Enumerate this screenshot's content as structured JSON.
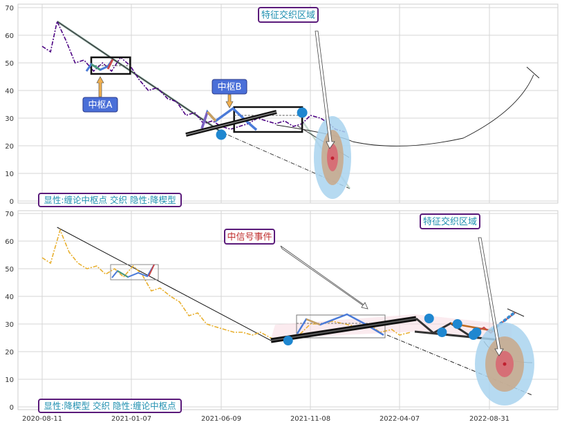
{
  "x_ticks": [
    "2020-08-11",
    "2021-01-07",
    "2021-06-09",
    "2021-11-08",
    "2022-04-07",
    "2022-08-31"
  ],
  "y_ticks": [
    "0",
    "10",
    "20",
    "30",
    "40",
    "50",
    "60",
    "70"
  ],
  "colors": {
    "top_price": "#4b0082",
    "bottom_price": "#e8b030",
    "hub_label_fill": "#4a6fd8",
    "highlight_blue": "#1f87d0",
    "zone_red": "#d24a5a",
    "legend_text": "#1f8fb0",
    "legend_border": "#5a1a7a",
    "signal_text": "#c03030"
  },
  "top_panel": {
    "annotation_zone": "特征交织区域",
    "hub_a": "中枢A",
    "hub_b": "中枢B",
    "legend": "显性:缠论中枢点 交织 隐性:降楔型"
  },
  "bottom_panel": {
    "annotation_zone": "特征交织区域",
    "signal": "中信号事件",
    "legend": "显性:降楔型 交织 隐性:缠论中枢点"
  },
  "chart_data": [
    {
      "type": "line",
      "panel": "top",
      "xlabels": [
        "2020-08-11",
        "2021-01-07",
        "2021-06-09",
        "2021-11-08",
        "2022-04-07",
        "2022-08-31"
      ],
      "ylim": [
        0,
        70
      ],
      "series": [
        {
          "values": [
            [
              "2020-08-11",
              56
            ],
            [
              "2020-08-25",
              54
            ],
            [
              "2020-09-05",
              65
            ],
            [
              "2020-09-20",
              58
            ],
            [
              "2020-10-05",
              50
            ],
            [
              "2020-10-20",
              51
            ],
            [
              "2020-11-05",
              47
            ],
            [
              "2020-11-20",
              50
            ],
            [
              "2020-12-05",
              47
            ],
            [
              "2020-12-20",
              52
            ],
            [
              "2021-01-05",
              49
            ],
            [
              "2021-01-20",
              44
            ],
            [
              "2021-02-05",
              40
            ],
            [
              "2021-02-20",
              41
            ],
            [
              "2021-03-10",
              37
            ],
            [
              "2021-03-25",
              36
            ],
            [
              "2021-04-10",
              31
            ],
            [
              "2021-04-25",
              32
            ],
            [
              "2021-05-10",
              28
            ],
            [
              "2021-05-25",
              29
            ],
            [
              "2021-06-09",
              27
            ],
            [
              "2021-06-25",
              26
            ],
            [
              "2021-07-10",
              27
            ],
            [
              "2021-07-25",
              28
            ],
            [
              "2021-08-10",
              30
            ],
            [
              "2021-08-25",
              29
            ],
            [
              "2021-09-10",
              28
            ],
            [
              "2021-09-25",
              29
            ],
            [
              "2021-10-10",
              27
            ],
            [
              "2021-10-25",
              28
            ],
            [
              "2021-11-08",
              31
            ],
            [
              "2021-11-25",
              30
            ],
            [
              "2021-12-10",
              28
            ],
            [
              "2021-12-20",
              26
            ],
            [
              "2022-01-05",
              25
            ]
          ]
        }
      ],
      "hubs": [
        {
          "label": "中枢A",
          "x_range": [
            "2020-11-01",
            "2021-01-05"
          ],
          "y_range": [
            46,
            52
          ]
        },
        {
          "label": "中枢B",
          "x_range": [
            "2021-07-01",
            "2021-10-25"
          ],
          "y_range": [
            25,
            34
          ]
        }
      ],
      "points": [
        [
          "2021-06-09",
          24
        ],
        [
          "2021-10-25",
          32
        ]
      ]
    },
    {
      "type": "line",
      "panel": "bottom",
      "xlabels": [
        "2020-08-11",
        "2021-01-07",
        "2021-06-09",
        "2021-11-08",
        "2022-04-07",
        "2022-08-31"
      ],
      "ylim": [
        0,
        70
      ],
      "series": [
        {
          "values": [
            [
              "2020-08-11",
              54
            ],
            [
              "2020-08-25",
              52
            ],
            [
              "2020-09-10",
              64
            ],
            [
              "2020-09-25",
              56
            ],
            [
              "2020-10-10",
              52
            ],
            [
              "2020-10-25",
              50
            ],
            [
              "2020-11-10",
              51
            ],
            [
              "2020-11-25",
              48
            ],
            [
              "2020-12-10",
              50
            ],
            [
              "2020-12-25",
              47
            ],
            [
              "2021-01-10",
              51
            ],
            [
              "2021-01-25",
              48
            ],
            [
              "2021-02-10",
              42
            ],
            [
              "2021-02-25",
              43
            ],
            [
              "2021-03-15",
              40
            ],
            [
              "2021-03-30",
              38
            ],
            [
              "2021-04-15",
              33
            ],
            [
              "2021-04-30",
              34
            ],
            [
              "2021-05-15",
              30
            ],
            [
              "2021-05-30",
              29
            ],
            [
              "2021-06-15",
              28
            ],
            [
              "2021-07-01",
              27
            ],
            [
              "2021-07-15",
              27
            ],
            [
              "2021-08-01",
              26
            ],
            [
              "2021-08-15",
              27
            ],
            [
              "2021-09-01",
              25
            ],
            [
              "2021-09-15",
              24
            ],
            [
              "2021-10-01",
              24
            ],
            [
              "2021-10-15",
              25
            ],
            [
              "2021-11-08",
              30
            ],
            [
              "2021-11-25",
              30
            ],
            [
              "2021-12-15",
              31
            ],
            [
              "2022-01-05",
              30
            ],
            [
              "2022-01-25",
              29
            ],
            [
              "2022-02-15",
              30
            ],
            [
              "2022-03-05",
              27
            ],
            [
              "2022-03-25",
              28
            ],
            [
              "2022-04-07",
              26
            ],
            [
              "2022-04-25",
              27
            ]
          ]
        }
      ],
      "points": [
        [
          "2021-10-01",
          24
        ],
        [
          "2022-05-25",
          32
        ],
        [
          "2022-06-15",
          27
        ],
        [
          "2022-07-10",
          30
        ],
        [
          "2022-08-05",
          26
        ],
        [
          "2022-08-10",
          27
        ]
      ]
    }
  ]
}
